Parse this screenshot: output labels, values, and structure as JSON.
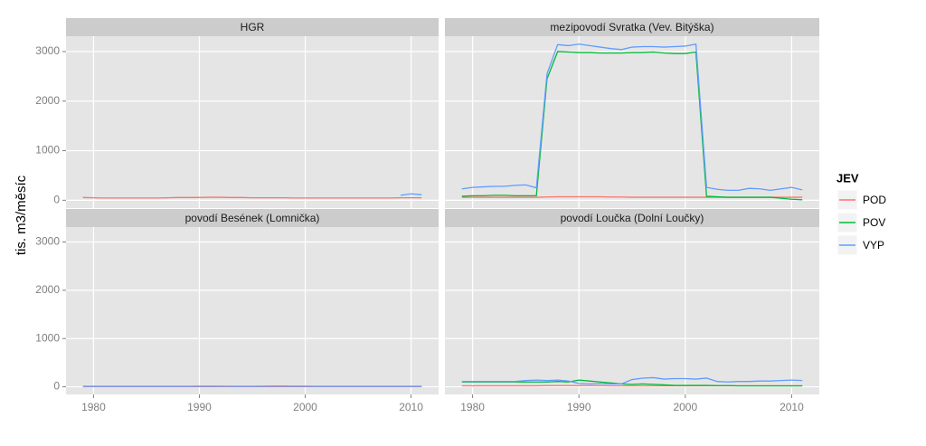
{
  "y_label": "tis. m3/měsíc",
  "legend": {
    "title": "JEV"
  },
  "chart_data": [
    {
      "type": "line",
      "title": "HGR",
      "x": [
        1979,
        1980,
        1981,
        1982,
        1983,
        1984,
        1985,
        1986,
        1987,
        1988,
        1989,
        1990,
        1991,
        1992,
        1993,
        1994,
        1995,
        1996,
        1997,
        1998,
        1999,
        2000,
        2001,
        2002,
        2003,
        2004,
        2005,
        2006,
        2007,
        2008,
        2009,
        2010,
        2011
      ],
      "xlim": [
        1977.4,
        2012.6
      ],
      "xticks": [
        1980,
        1990,
        2000,
        2010
      ],
      "ylim": [
        -158,
        3310
      ],
      "yticks": [
        0,
        1000,
        2000,
        3000
      ],
      "series": [
        {
          "name": "POD",
          "color": "#f8766d",
          "values": [
            55,
            50,
            45,
            45,
            45,
            45,
            45,
            45,
            50,
            55,
            55,
            55,
            60,
            60,
            55,
            55,
            50,
            50,
            50,
            50,
            45,
            45,
            45,
            45,
            45,
            45,
            45,
            45,
            45,
            45,
            50,
            50,
            50
          ]
        },
        {
          "name": "VYP",
          "color": "#619cff",
          "values": [
            null,
            null,
            null,
            null,
            null,
            null,
            null,
            null,
            null,
            null,
            null,
            null,
            null,
            null,
            null,
            null,
            null,
            null,
            null,
            null,
            null,
            null,
            null,
            null,
            null,
            null,
            null,
            null,
            null,
            null,
            100,
            130,
            110
          ]
        }
      ]
    },
    {
      "type": "line",
      "title": "mezipovodí Svratka (Vev. Bitýška)",
      "x": [
        1979,
        1980,
        1981,
        1982,
        1983,
        1984,
        1985,
        1986,
        1987,
        1988,
        1989,
        1990,
        1991,
        1992,
        1993,
        1994,
        1995,
        1996,
        1997,
        1998,
        1999,
        2000,
        2001,
        2002,
        2003,
        2004,
        2005,
        2006,
        2007,
        2008,
        2009,
        2010,
        2011
      ],
      "xlim": [
        1977.4,
        2012.6
      ],
      "xticks": [
        1980,
        1990,
        2000,
        2010
      ],
      "ylim": [
        -158,
        3310
      ],
      "yticks": [
        0,
        1000,
        2000,
        3000
      ],
      "series": [
        {
          "name": "POD",
          "color": "#f8766d",
          "values": [
            60,
            60,
            60,
            60,
            60,
            60,
            60,
            60,
            65,
            70,
            70,
            70,
            70,
            70,
            65,
            65,
            60,
            60,
            60,
            60,
            60,
            60,
            60,
            60,
            60,
            60,
            60,
            60,
            60,
            60,
            60,
            60,
            60
          ]
        },
        {
          "name": "POV",
          "color": "#00ba38",
          "values": [
            80,
            90,
            90,
            100,
            100,
            90,
            90,
            90,
            2450,
            3000,
            2990,
            2980,
            2980,
            2970,
            2970,
            2970,
            2980,
            2980,
            2990,
            2970,
            2960,
            2960,
            2990,
            80,
            70,
            60,
            60,
            60,
            60,
            60,
            40,
            20,
            10
          ]
        },
        {
          "name": "VYP",
          "color": "#619cff",
          "values": [
            230,
            260,
            270,
            280,
            280,
            300,
            310,
            250,
            2550,
            3140,
            3120,
            3150,
            3120,
            3090,
            3060,
            3040,
            3090,
            3100,
            3100,
            3090,
            3100,
            3110,
            3150,
            260,
            220,
            200,
            200,
            240,
            230,
            200,
            230,
            260,
            210
          ]
        }
      ]
    },
    {
      "type": "line",
      "title": "povodí Besének (Lomnička)",
      "x": [
        1979,
        1980,
        1981,
        1982,
        1983,
        1984,
        1985,
        1986,
        1987,
        1988,
        1989,
        1990,
        1991,
        1992,
        1993,
        1994,
        1995,
        1996,
        1997,
        1998,
        1999,
        2000,
        2001,
        2002,
        2003,
        2004,
        2005,
        2006,
        2007,
        2008,
        2009,
        2010,
        2011
      ],
      "xlim": [
        1977.4,
        2012.6
      ],
      "xticks": [
        1980,
        1990,
        2000,
        2010
      ],
      "ylim": [
        -158,
        3310
      ],
      "yticks": [
        0,
        1000,
        2000,
        3000
      ],
      "series": [
        {
          "name": "POD",
          "color": "#f8766d",
          "values": [
            5,
            5,
            5,
            5,
            5,
            5,
            5,
            5,
            5,
            5,
            5,
            5,
            5,
            5,
            5,
            5,
            5,
            5,
            5,
            5,
            5,
            5,
            5,
            5,
            5,
            5,
            5,
            5,
            5,
            5,
            5,
            5,
            5
          ]
        },
        {
          "name": "VYP",
          "color": "#619cff",
          "values": [
            10,
            10,
            10,
            10,
            10,
            10,
            10,
            10,
            10,
            10,
            10,
            12,
            12,
            12,
            10,
            10,
            10,
            12,
            14,
            14,
            12,
            12,
            10,
            10,
            10,
            10,
            10,
            10,
            10,
            10,
            10,
            10,
            10
          ]
        }
      ]
    },
    {
      "type": "line",
      "title": "povodí Loučka (Dolní Loučky)",
      "x": [
        1979,
        1980,
        1981,
        1982,
        1983,
        1984,
        1985,
        1986,
        1987,
        1988,
        1989,
        1990,
        1991,
        1992,
        1993,
        1994,
        1995,
        1996,
        1997,
        1998,
        1999,
        2000,
        2001,
        2002,
        2003,
        2004,
        2005,
        2006,
        2007,
        2008,
        2009,
        2010,
        2011
      ],
      "xlim": [
        1977.4,
        2012.6
      ],
      "xticks": [
        1980,
        1990,
        2000,
        2010
      ],
      "ylim": [
        -158,
        3310
      ],
      "yticks": [
        0,
        1000,
        2000,
        3000
      ],
      "series": [
        {
          "name": "POD",
          "color": "#f8766d",
          "values": [
            20,
            20,
            20,
            20,
            20,
            20,
            20,
            20,
            25,
            25,
            25,
            25,
            25,
            25,
            20,
            20,
            20,
            20,
            20,
            20,
            20,
            20,
            20,
            20,
            20,
            20,
            20,
            20,
            20,
            20,
            20,
            20,
            20
          ]
        },
        {
          "name": "POV",
          "color": "#00ba38",
          "values": [
            100,
            100,
            100,
            100,
            100,
            100,
            100,
            100,
            100,
            110,
            100,
            140,
            120,
            100,
            80,
            60,
            50,
            60,
            50,
            40,
            30,
            30,
            30,
            30,
            25,
            25,
            20,
            20,
            20,
            20,
            20,
            20,
            20
          ]
        },
        {
          "name": "VYP",
          "color": "#619cff",
          "values": [
            110,
            110,
            110,
            110,
            110,
            110,
            130,
            140,
            130,
            140,
            120,
            70,
            60,
            70,
            60,
            60,
            150,
            180,
            190,
            160,
            170,
            170,
            160,
            180,
            110,
            100,
            110,
            110,
            120,
            120,
            130,
            140,
            130
          ]
        }
      ]
    }
  ]
}
